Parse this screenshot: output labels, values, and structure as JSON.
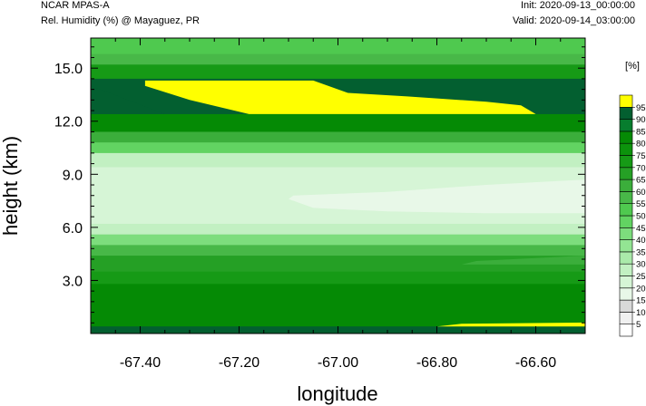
{
  "header": {
    "model": "NCAR MPAS-A",
    "field": "Rel. Humidity (%) @ Mayaguez, PR",
    "init": "Init: 2020-09-13_00:00:00",
    "valid": "Valid: 2020-09-14_03:00:00"
  },
  "chart_data": {
    "type": "heatmap",
    "xlabel": "longitude",
    "ylabel": "height (km)",
    "xlim": [
      -67.5,
      -66.5
    ],
    "ylim": [
      0.0,
      16.7
    ],
    "x_ticks": [
      -67.4,
      -67.2,
      -67.0,
      -66.8,
      -66.6
    ],
    "x_tick_labels": [
      "-67.40",
      "-67.20",
      "-67.00",
      "-66.80",
      "-66.60"
    ],
    "y_ticks": [
      3.0,
      6.0,
      9.0,
      12.0,
      15.0
    ],
    "y_tick_labels": [
      "3.0",
      "6.0",
      "9.0",
      "12.0",
      "15.0"
    ],
    "colorbar": {
      "units": "[%]",
      "levels": [
        5,
        10,
        15,
        20,
        25,
        30,
        35,
        40,
        45,
        50,
        55,
        60,
        65,
        70,
        75,
        80,
        85,
        90,
        95
      ],
      "colors": [
        "#ffffff",
        "#f0f0f0",
        "#d9d9d9",
        "#e8f8e8",
        "#d6f5d6",
        "#c2f0c2",
        "#aaeaaa",
        "#93e593",
        "#7ddd7d",
        "#62d362",
        "#4fc94f",
        "#48b848",
        "#3bae3b",
        "#25a025",
        "#169a16",
        "#0c930c",
        "#058a05",
        "#077d2e",
        "#035f30",
        "#ffff00"
      ]
    },
    "bands": [
      {
        "y": [
          15.8,
          16.7
        ],
        "rh": 52
      },
      {
        "y": [
          15.2,
          15.8
        ],
        "rh": 57
      },
      {
        "y": [
          14.4,
          15.2
        ],
        "rh": 72
      },
      {
        "y": [
          12.4,
          14.4
        ],
        "rh": 92
      },
      {
        "y": [
          11.4,
          12.4
        ],
        "rh": 82
      },
      {
        "y": [
          10.8,
          11.4
        ],
        "rh": 62
      },
      {
        "y": [
          10.2,
          10.8
        ],
        "rh": 47
      },
      {
        "y": [
          9.4,
          10.2
        ],
        "rh": 27
      },
      {
        "y": [
          6.2,
          9.4
        ],
        "rh": 22
      },
      {
        "y": [
          5.6,
          6.2
        ],
        "rh": 27
      },
      {
        "y": [
          5.0,
          5.6
        ],
        "rh": 42
      },
      {
        "y": [
          4.4,
          5.0
        ],
        "rh": 57
      },
      {
        "y": [
          3.5,
          4.4
        ],
        "rh": 67
      },
      {
        "y": [
          2.8,
          3.5
        ],
        "rh": 72
      },
      {
        "y": [
          0.4,
          2.8
        ],
        "rh": 82
      },
      {
        "y": [
          0.0,
          0.4
        ],
        "rh": 92
      }
    ],
    "features": [
      {
        "name": "upper-moist-core",
        "rh": 97,
        "points": [
          [
            -67.39,
            14.3
          ],
          [
            -67.05,
            14.3
          ],
          [
            -66.98,
            13.6
          ],
          [
            -66.86,
            13.4
          ],
          [
            -66.7,
            13.1
          ],
          [
            -66.63,
            12.9
          ],
          [
            -66.6,
            12.4
          ],
          [
            -67.18,
            12.4
          ],
          [
            -67.3,
            13.2
          ],
          [
            -67.39,
            14.0
          ]
        ]
      },
      {
        "name": "midlevel-dry-tongue",
        "rh": 17,
        "points": [
          [
            -67.09,
            7.8
          ],
          [
            -66.9,
            8.0
          ],
          [
            -66.7,
            8.4
          ],
          [
            -66.5,
            8.7
          ],
          [
            -66.5,
            6.8
          ],
          [
            -66.7,
            6.8
          ],
          [
            -66.9,
            6.9
          ],
          [
            -67.05,
            7.1
          ],
          [
            -67.1,
            7.6
          ]
        ]
      },
      {
        "name": "upper-left-wedge",
        "rh": 92,
        "points": [
          [
            -67.5,
            14.0
          ],
          [
            -67.35,
            12.4
          ],
          [
            -67.5,
            12.4
          ]
        ]
      },
      {
        "name": "lower-right-light-patch",
        "rh": 62,
        "points": [
          [
            -66.72,
            4.1
          ],
          [
            -66.5,
            4.4
          ],
          [
            -66.5,
            3.9
          ],
          [
            -66.75,
            3.9
          ]
        ]
      },
      {
        "name": "surface-moist-patch",
        "rh": 97,
        "points": [
          [
            -66.75,
            0.55
          ],
          [
            -66.5,
            0.62
          ],
          [
            -66.5,
            0.4
          ],
          [
            -66.8,
            0.4
          ]
        ]
      }
    ]
  }
}
